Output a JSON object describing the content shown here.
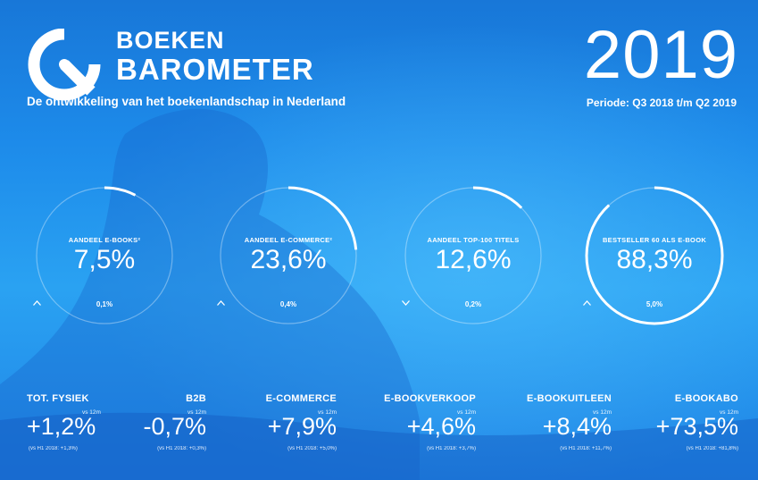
{
  "brand": {
    "line1": "BOEKEN",
    "line2": "BAROMETER",
    "tagline": "De ontwikkeling van het boekenlandschap in Nederland",
    "logo_icon": "barometer-logo-icon"
  },
  "year": "2019",
  "periode": "Periode: Q3 2018 t/m Q2 2019",
  "gauges": [
    {
      "label": "AANDEEL E-BOOKS²",
      "value": "7,5%",
      "fraction": 0.075,
      "direction": "up",
      "change": "0,1%"
    },
    {
      "label": "AANDEEL E-COMMERCE²",
      "value": "23,6%",
      "fraction": 0.236,
      "direction": "up",
      "change": "0,4%"
    },
    {
      "label": "AANDEEL TOP-100 TITELS",
      "value": "12,6%",
      "fraction": 0.126,
      "direction": "down",
      "change": "0,2%"
    },
    {
      "label": "BESTSELLER 60 ALS E-BOOK",
      "value": "88,3%",
      "fraction": 0.883,
      "direction": "up",
      "change": "5,0%"
    }
  ],
  "metrics": [
    {
      "title": "TOT. FYSIEK",
      "vs": "vs 12m",
      "value": "+1,2%",
      "note": "(vs H1 2018: +1,3%)"
    },
    {
      "title": "B2B",
      "vs": "vs 12m",
      "value": "-0,7%",
      "note": "(vs H1 2018: +0,3%)"
    },
    {
      "title": "E-COMMERCE",
      "vs": "vs 12m",
      "value": "+7,9%",
      "note": "(vs H1 2018: +5,0%)"
    },
    {
      "title": "E-BOOKVERKOOP",
      "vs": "vs 12m",
      "value": "+4,6%",
      "note": "(vs H1 2018: +3,7%)"
    },
    {
      "title": "E-BOOKUITLEEN",
      "vs": "vs 12m",
      "value": "+8,4%",
      "note": "(vs H1 2018: +11,7%)"
    },
    {
      "title": "E-BOOKABO",
      "vs": "vs 12m",
      "value": "+73,5%",
      "note": "(vs H1 2018: +81,8%)"
    }
  ],
  "colors": {
    "accent": "#ffffff",
    "background": "#1d8bea"
  }
}
